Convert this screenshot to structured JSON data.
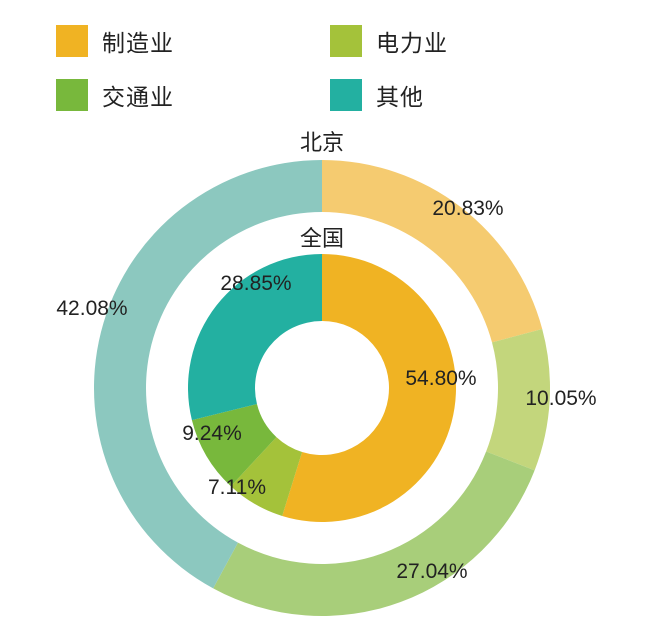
{
  "legend": [
    {
      "label": "制造业",
      "color": "#F0B323"
    },
    {
      "label": "电力业",
      "color": "#A4C23A"
    },
    {
      "label": "交通业",
      "color": "#78B83C"
    },
    {
      "label": "其他",
      "color": "#23B0A1"
    }
  ],
  "chart_data": {
    "type": "donut",
    "categories": [
      "制造业",
      "电力业",
      "交通业",
      "其他"
    ],
    "series": [
      {
        "name": "北京",
        "ring": "outer",
        "values": [
          20.83,
          10.05,
          27.04,
          42.08
        ],
        "labels": [
          "20.83%",
          "10.05%",
          "27.04%",
          "42.08%"
        ],
        "colors": [
          "#F5CB70",
          "#C3D67C",
          "#A8CE7A",
          "#8CC8BF"
        ]
      },
      {
        "name": "全国",
        "ring": "inner",
        "values": [
          54.8,
          7.11,
          9.24,
          28.85
        ],
        "labels": [
          "54.80%",
          "7.11%",
          "9.24%",
          "28.85%"
        ],
        "colors": [
          "#F0B323",
          "#A4C23A",
          "#78B83C",
          "#23B0A1"
        ]
      }
    ]
  }
}
